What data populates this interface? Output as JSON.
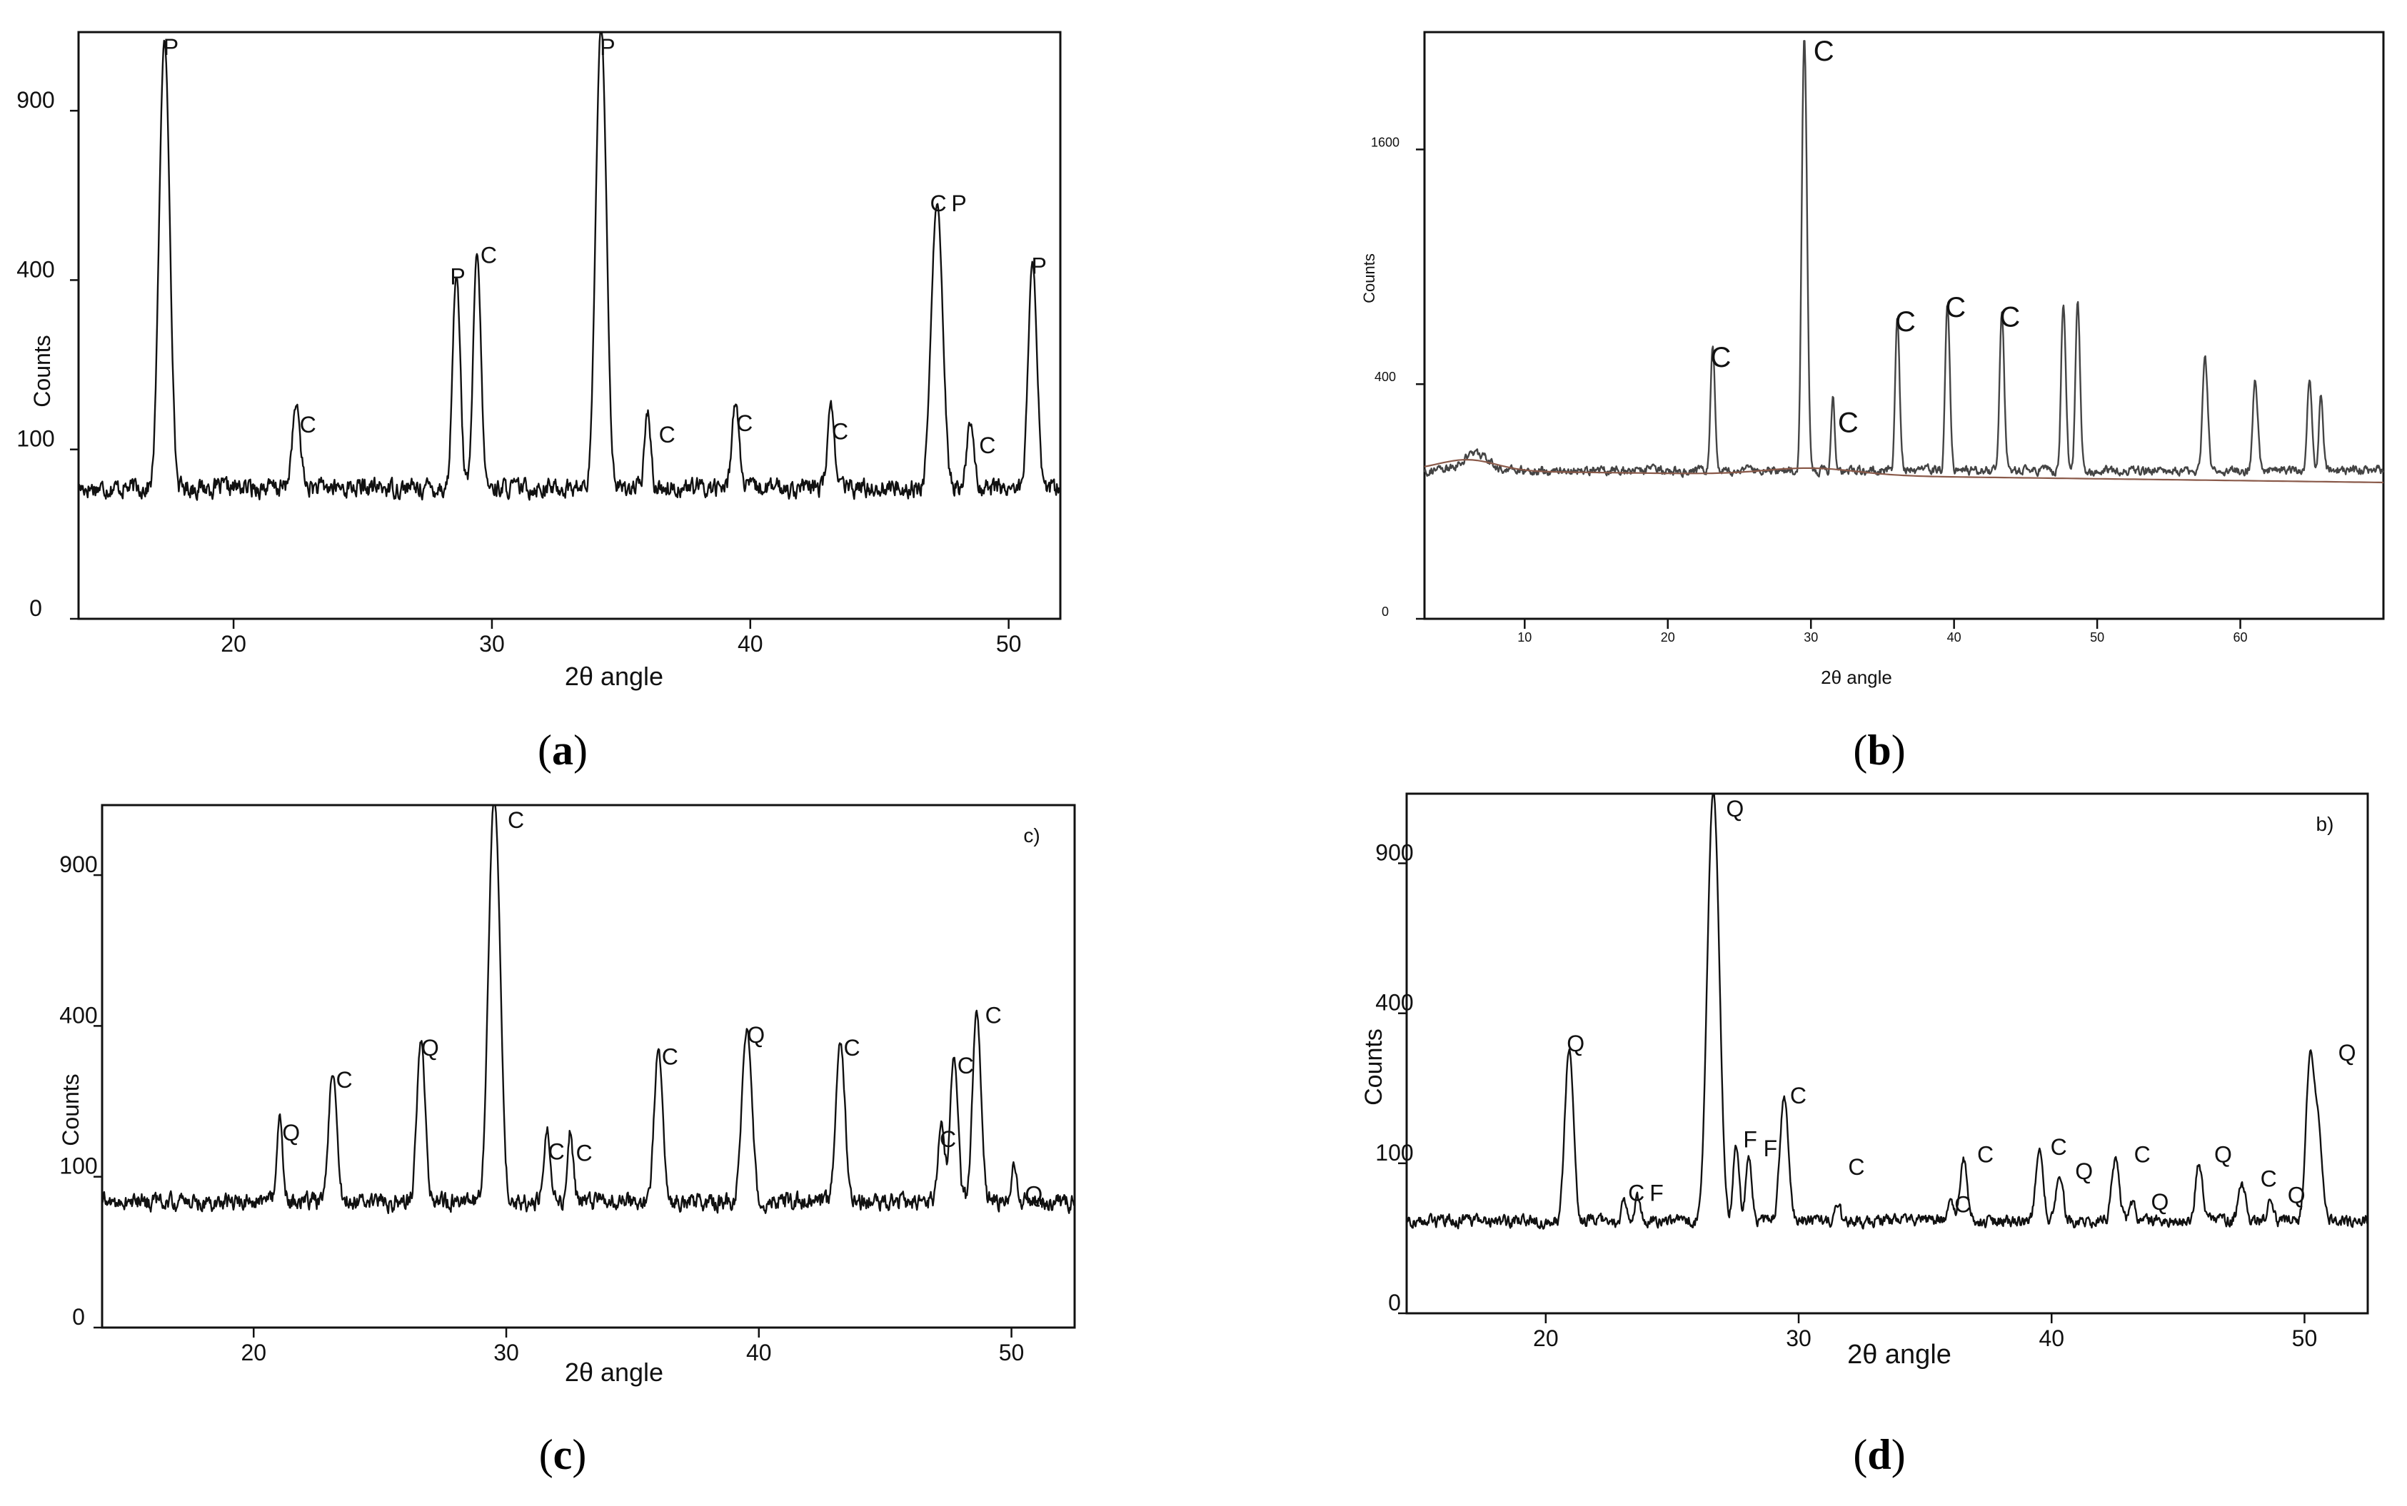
{
  "figure": {
    "captions": [
      "(a)",
      "(b)",
      "(c)",
      "(d)"
    ],
    "caption_letters": [
      "a",
      "b",
      "c",
      "d"
    ]
  },
  "chart_data": [
    {
      "type": "line",
      "panel": "a",
      "title": "",
      "xlabel": "2θ angle",
      "ylabel": "Counts",
      "xlim": [
        14,
        52
      ],
      "ylim": [
        0,
        1200
      ],
      "y_scale": "sqrt",
      "x_ticks": [
        20,
        30,
        40,
        50
      ],
      "y_ticks": [
        0,
        100,
        400,
        900
      ],
      "grid": false,
      "baseline": 60,
      "noise": 14,
      "series": [
        {
          "peaks": [
            {
              "x": 17.3,
              "y": 1130,
              "w": 0.16
            },
            {
              "x": 22.4,
              "y": 100,
              "w": 0.14
            },
            {
              "x": 28.6,
              "y": 370,
              "w": 0.12
            },
            {
              "x": 29.4,
              "y": 420,
              "w": 0.12
            },
            {
              "x": 34.2,
              "y": 1200,
              "w": 0.16
            },
            {
              "x": 36.0,
              "y": 95,
              "w": 0.1
            },
            {
              "x": 39.4,
              "y": 110,
              "w": 0.12
            },
            {
              "x": 43.1,
              "y": 100,
              "w": 0.12
            },
            {
              "x": 47.2,
              "y": 550,
              "w": 0.18
            },
            {
              "x": 48.5,
              "y": 80,
              "w": 0.12
            },
            {
              "x": 50.9,
              "y": 390,
              "w": 0.14
            }
          ]
        }
      ],
      "annotations": [
        {
          "x": 17.3,
          "y": 1130,
          "label": "P"
        },
        {
          "x": 22.6,
          "y": 110,
          "label": "C"
        },
        {
          "x": 28.4,
          "y": 370,
          "label": "P"
        },
        {
          "x": 29.6,
          "y": 420,
          "label": "C"
        },
        {
          "x": 34.2,
          "y": 1200,
          "label": "P"
        },
        {
          "x": 36.5,
          "y": 98,
          "label": "C"
        },
        {
          "x": 39.5,
          "y": 112,
          "label": "C"
        },
        {
          "x": 43.2,
          "y": 102,
          "label": "C"
        },
        {
          "x": 47.0,
          "y": 555,
          "label": "C"
        },
        {
          "x": 47.8,
          "y": 555,
          "label": "P"
        },
        {
          "x": 48.9,
          "y": 86,
          "label": "C"
        },
        {
          "x": 50.9,
          "y": 395,
          "label": "P"
        }
      ]
    },
    {
      "type": "line",
      "panel": "b",
      "title": "",
      "xlabel": "2θ angle",
      "ylabel": "Counts",
      "xlim": [
        3,
        70
      ],
      "ylim": [
        0,
        2500
      ],
      "y_scale": "sqrt",
      "x_ticks": [
        10,
        20,
        30,
        40,
        50,
        60
      ],
      "y_ticks": [
        0,
        400,
        1600
      ],
      "grid": false,
      "baseline": 160,
      "noise": 16,
      "fitted_background": true,
      "series": [
        {
          "peaks": [
            {
              "x": 6.5,
              "y": 40,
              "w": 0.8
            },
            {
              "x": 23.1,
              "y": 430,
              "w": 0.12
            },
            {
              "x": 29.5,
              "y": 2500,
              "w": 0.14
            },
            {
              "x": 31.5,
              "y": 230,
              "w": 0.1
            },
            {
              "x": 36.0,
              "y": 560,
              "w": 0.12
            },
            {
              "x": 39.5,
              "y": 620,
              "w": 0.13
            },
            {
              "x": 43.3,
              "y": 580,
              "w": 0.13
            },
            {
              "x": 47.6,
              "y": 620,
              "w": 0.13
            },
            {
              "x": 48.6,
              "y": 620,
              "w": 0.13
            },
            {
              "x": 57.5,
              "y": 360,
              "w": 0.15
            },
            {
              "x": 61.0,
              "y": 270,
              "w": 0.15
            },
            {
              "x": 64.8,
              "y": 280,
              "w": 0.14
            },
            {
              "x": 65.6,
              "y": 230,
              "w": 0.12
            }
          ]
        }
      ],
      "annotations": [
        {
          "x": 23.1,
          "y": 430,
          "label": "C"
        },
        {
          "x": 30.3,
          "y": 2500,
          "label": "C"
        },
        {
          "x": 32.0,
          "y": 230,
          "label": "C"
        },
        {
          "x": 36.0,
          "y": 565,
          "label": "C"
        },
        {
          "x": 39.5,
          "y": 625,
          "label": "C"
        },
        {
          "x": 43.3,
          "y": 585,
          "label": "C"
        }
      ]
    },
    {
      "type": "line",
      "panel": "c",
      "title": "",
      "xlabel": "2θ angle",
      "ylabel": "Counts",
      "xlim": [
        14,
        52.5
      ],
      "ylim": [
        0,
        1200
      ],
      "y_scale": "sqrt",
      "x_ticks": [
        20,
        30,
        40,
        50
      ],
      "y_ticks": [
        0,
        100,
        400,
        900
      ],
      "grid": false,
      "baseline": 70,
      "noise": 16,
      "corner_label": "c)",
      "series": [
        {
          "peaks": [
            {
              "x": 21.0,
              "y": 130,
              "w": 0.1
            },
            {
              "x": 23.1,
              "y": 230,
              "w": 0.13
            },
            {
              "x": 26.6,
              "y": 300,
              "w": 0.14
            },
            {
              "x": 29.5,
              "y": 1200,
              "w": 0.18
            },
            {
              "x": 31.6,
              "y": 105,
              "w": 0.12
            },
            {
              "x": 32.5,
              "y": 105,
              "w": 0.1
            },
            {
              "x": 36.0,
              "y": 280,
              "w": 0.14
            },
            {
              "x": 39.5,
              "y": 330,
              "w": 0.16
            },
            {
              "x": 43.2,
              "y": 300,
              "w": 0.15
            },
            {
              "x": 47.2,
              "y": 120,
              "w": 0.12
            },
            {
              "x": 47.7,
              "y": 260,
              "w": 0.13
            },
            {
              "x": 48.6,
              "y": 380,
              "w": 0.14
            },
            {
              "x": 50.1,
              "y": 50,
              "w": 0.1
            }
          ]
        }
      ],
      "annotations": [
        {
          "x": 21.2,
          "y": 140,
          "label": "Q"
        },
        {
          "x": 23.3,
          "y": 235,
          "label": "C"
        },
        {
          "x": 26.7,
          "y": 305,
          "label": "Q"
        },
        {
          "x": 30.1,
          "y": 1200,
          "label": "C"
        },
        {
          "x": 31.7,
          "y": 112,
          "label": "C"
        },
        {
          "x": 32.8,
          "y": 110,
          "label": "C"
        },
        {
          "x": 36.2,
          "y": 285,
          "label": "C"
        },
        {
          "x": 39.6,
          "y": 335,
          "label": "Q"
        },
        {
          "x": 43.4,
          "y": 305,
          "label": "C"
        },
        {
          "x": 47.2,
          "y": 130,
          "label": "C"
        },
        {
          "x": 47.9,
          "y": 265,
          "label": "C"
        },
        {
          "x": 49.0,
          "y": 385,
          "label": "C"
        },
        {
          "x": 50.6,
          "y": 60,
          "label": "Q"
        }
      ]
    },
    {
      "type": "line",
      "panel": "d",
      "title": "",
      "xlabel": "2θ angle",
      "ylabel": "Counts",
      "xlim": [
        14.5,
        52.5
      ],
      "ylim": [
        0,
        1200
      ],
      "y_scale": "sqrt",
      "x_ticks": [
        20,
        30,
        40,
        50
      ],
      "y_ticks": [
        0,
        100,
        400,
        900
      ],
      "grid": false,
      "baseline": 38,
      "noise": 8,
      "corner_label": "b)",
      "series": [
        {
          "peaks": [
            {
              "x": 20.9,
              "y": 280,
              "w": 0.14
            },
            {
              "x": 23.1,
              "y": 20,
              "w": 0.1
            },
            {
              "x": 23.6,
              "y": 22,
              "w": 0.1
            },
            {
              "x": 26.6,
              "y": 1200,
              "w": 0.18
            },
            {
              "x": 27.5,
              "y": 90,
              "w": 0.1
            },
            {
              "x": 28.0,
              "y": 75,
              "w": 0.1
            },
            {
              "x": 29.4,
              "y": 175,
              "w": 0.14
            },
            {
              "x": 31.5,
              "y": 20,
              "w": 0.1
            },
            {
              "x": 36.0,
              "y": 16,
              "w": 0.1
            },
            {
              "x": 36.5,
              "y": 70,
              "w": 0.12
            },
            {
              "x": 39.5,
              "y": 80,
              "w": 0.13
            },
            {
              "x": 40.3,
              "y": 50,
              "w": 0.12
            },
            {
              "x": 42.5,
              "y": 70,
              "w": 0.13
            },
            {
              "x": 43.2,
              "y": 20,
              "w": 0.1
            },
            {
              "x": 45.8,
              "y": 65,
              "w": 0.12
            },
            {
              "x": 47.5,
              "y": 38,
              "w": 0.13
            },
            {
              "x": 48.6,
              "y": 22,
              "w": 0.1
            },
            {
              "x": 50.2,
              "y": 260,
              "w": 0.14
            },
            {
              "x": 50.5,
              "y": 120,
              "w": 0.14
            }
          ]
        }
      ],
      "annotations": [
        {
          "x": 20.9,
          "y": 285,
          "label": "Q"
        },
        {
          "x": 23.3,
          "y": 48,
          "label": "C"
        },
        {
          "x": 24.1,
          "y": 48,
          "label": "F"
        },
        {
          "x": 27.2,
          "y": 1200,
          "label": "Q"
        },
        {
          "x": 27.8,
          "y": 110,
          "label": "F"
        },
        {
          "x": 28.6,
          "y": 98,
          "label": "F"
        },
        {
          "x": 29.7,
          "y": 180,
          "label": "C"
        },
        {
          "x": 32.0,
          "y": 75,
          "label": "C"
        },
        {
          "x": 36.2,
          "y": 38,
          "label": "C"
        },
        {
          "x": 37.1,
          "y": 90,
          "label": "C"
        },
        {
          "x": 40.0,
          "y": 100,
          "label": "C"
        },
        {
          "x": 41.0,
          "y": 70,
          "label": "Q"
        },
        {
          "x": 43.3,
          "y": 90,
          "label": "C"
        },
        {
          "x": 44.0,
          "y": 40,
          "label": "Q"
        },
        {
          "x": 46.5,
          "y": 90,
          "label": "Q"
        },
        {
          "x": 48.3,
          "y": 62,
          "label": "C"
        },
        {
          "x": 49.4,
          "y": 46,
          "label": "Q"
        },
        {
          "x": 51.4,
          "y": 265,
          "label": "Q"
        }
      ]
    }
  ]
}
